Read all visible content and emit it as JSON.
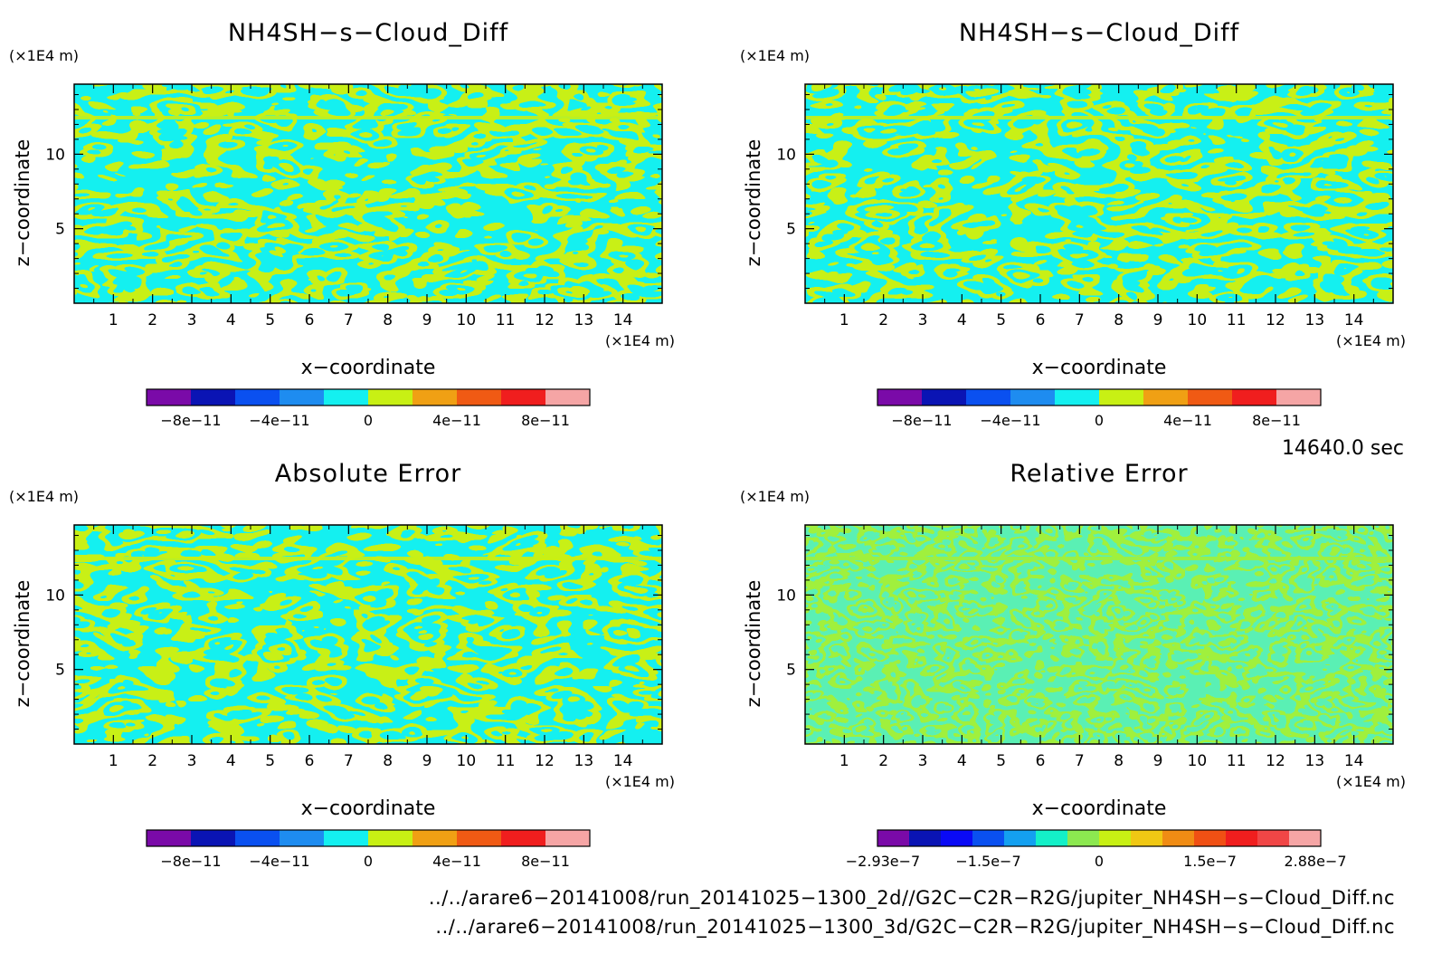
{
  "chart_data": [
    {
      "type": "heatmap",
      "title": "NH4SH−s−Cloud_Diff",
      "xlabel": "x−coordinate",
      "ylabel": "z−coordinate",
      "x_unit": "(×1E4 m)",
      "y_unit": "(×1E4 m)",
      "xlim": [
        0,
        15
      ],
      "ylim": [
        0,
        14.7
      ],
      "x_ticks": [
        1,
        2,
        3,
        4,
        5,
        6,
        7,
        8,
        9,
        10,
        11,
        12,
        13,
        14
      ],
      "y_ticks": [
        5,
        10
      ],
      "colorbar": {
        "colors": [
          "#7a0aa8",
          "#0a14b4",
          "#0a50f0",
          "#1e8cf0",
          "#14f0f0",
          "#c8f014",
          "#f0a014",
          "#f05a14",
          "#f01e1e",
          "#f5a5a5"
        ],
        "tick_labels": [
          "−8e−11",
          "−4e−11",
          "0",
          "4e−11",
          "8e−11"
        ]
      },
      "dominant_colors": [
        "#14f0f0",
        "#c8f014"
      ]
    },
    {
      "type": "heatmap",
      "title": "NH4SH−s−Cloud_Diff",
      "xlabel": "x−coordinate",
      "ylabel": "z−coordinate",
      "x_unit": "(×1E4 m)",
      "y_unit": "(×1E4 m)",
      "xlim": [
        0,
        15
      ],
      "ylim": [
        0,
        14.7
      ],
      "x_ticks": [
        1,
        2,
        3,
        4,
        5,
        6,
        7,
        8,
        9,
        10,
        11,
        12,
        13,
        14
      ],
      "y_ticks": [
        5,
        10
      ],
      "colorbar": {
        "colors": [
          "#7a0aa8",
          "#0a14b4",
          "#0a50f0",
          "#1e8cf0",
          "#14f0f0",
          "#c8f014",
          "#f0a014",
          "#f05a14",
          "#f01e1e",
          "#f5a5a5"
        ],
        "tick_labels": [
          "−8e−11",
          "−4e−11",
          "0",
          "4e−11",
          "8e−11"
        ]
      },
      "dominant_colors": [
        "#14f0f0",
        "#c8f014"
      ]
    },
    {
      "type": "heatmap",
      "title": "Absolute Error",
      "xlabel": "x−coordinate",
      "ylabel": "z−coordinate",
      "x_unit": "(×1E4 m)",
      "y_unit": "(×1E4 m)",
      "xlim": [
        0,
        15
      ],
      "ylim": [
        0,
        14.7
      ],
      "x_ticks": [
        1,
        2,
        3,
        4,
        5,
        6,
        7,
        8,
        9,
        10,
        11,
        12,
        13,
        14
      ],
      "y_ticks": [
        5,
        10
      ],
      "colorbar": {
        "colors": [
          "#7a0aa8",
          "#0a14b4",
          "#0a50f0",
          "#1e8cf0",
          "#14f0f0",
          "#c8f014",
          "#f0a014",
          "#f05a14",
          "#f01e1e",
          "#f5a5a5"
        ],
        "tick_labels": [
          "−8e−11",
          "−4e−11",
          "0",
          "4e−11",
          "8e−11"
        ]
      },
      "dominant_colors": [
        "#14f0f0",
        "#c8f014"
      ]
    },
    {
      "type": "heatmap",
      "title": "Relative Error",
      "xlabel": "x−coordinate",
      "ylabel": "z−coordinate",
      "x_unit": "(×1E4 m)",
      "y_unit": "(×1E4 m)",
      "xlim": [
        0,
        15
      ],
      "ylim": [
        0,
        14.7
      ],
      "x_ticks": [
        1,
        2,
        3,
        4,
        5,
        6,
        7,
        8,
        9,
        10,
        11,
        12,
        13,
        14
      ],
      "y_ticks": [
        5,
        10
      ],
      "colorbar": {
        "colors": [
          "#7a0aa8",
          "#0a14b4",
          "#0a0af5",
          "#0a50f0",
          "#14a0f0",
          "#14f0c8",
          "#8ce850",
          "#c8f014",
          "#f0c814",
          "#f08c14",
          "#f05014",
          "#f01e1e",
          "#f04646",
          "#f5a5a5"
        ],
        "tick_labels": [
          "−2.93e−7",
          "−1.5e−7",
          "0",
          "1.5e−7",
          "2.88e−7"
        ]
      },
      "dominant_colors": [
        "#5af0b4",
        "#a0f03c"
      ]
    }
  ],
  "time_label": "14640.0 sec",
  "file_paths": [
    "../../arare6−20141008/run_20141025−1300_2d//G2C−C2R−R2G/jupiter_NH4SH−s−Cloud_Diff.nc",
    "../../arare6−20141008/run_20141025−1300_3d/G2C−C2R−R2G/jupiter_NH4SH−s−Cloud_Diff.nc"
  ]
}
